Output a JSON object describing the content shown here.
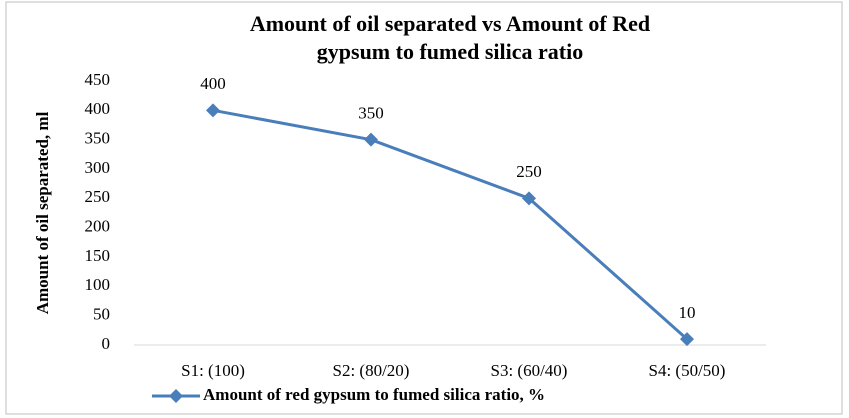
{
  "chart_data": {
    "type": "line",
    "title": [
      "Amount of oil separated  vs Amount  of Red",
      "gypsum to  fumed silica ratio"
    ],
    "y_label": "Amount of oil separated, ml",
    "categories": [
      "S1: (100)",
      "S2: (80/20)",
      "S3: (60/40)",
      "S4: (50/50)"
    ],
    "series": [
      {
        "name": "Amount of red gypsum to fumed silica ratio, %",
        "color": "#4a7ebb",
        "values": [
          400,
          350,
          250,
          10
        ]
      }
    ],
    "ylim": [
      0,
      450
    ],
    "yticks": [
      0,
      50,
      100,
      150,
      200,
      250,
      300,
      350,
      400,
      450
    ],
    "grid": false,
    "legend": "bottom"
  }
}
